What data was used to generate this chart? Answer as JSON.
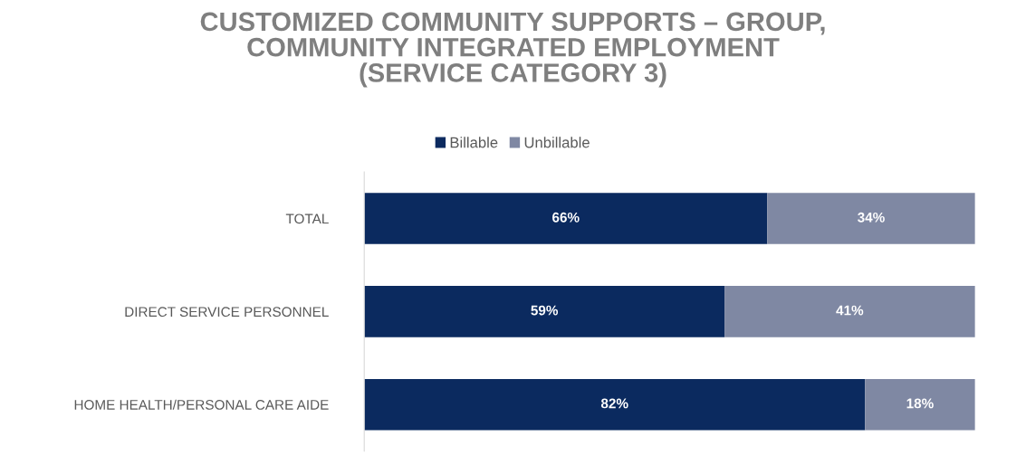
{
  "chart_data": {
    "type": "bar",
    "orientation": "horizontal",
    "stacked": true,
    "title": "CUSTOMIZED COMMUNITY SUPPORTS – GROUP,\nCOMMUNITY INTEGRATED EMPLOYMENT\n(SERVICE CATEGORY 3)",
    "categories": [
      "TOTAL",
      "DIRECT SERVICE PERSONNEL",
      "HOME HEALTH/PERSONAL CARE AIDE"
    ],
    "series": [
      {
        "name": "Billable",
        "color": "#0b2a5f",
        "values": [
          66,
          59,
          82
        ],
        "value_labels": [
          "66%",
          "59%",
          "82%"
        ]
      },
      {
        "name": "Unbillable",
        "color": "#7f88a3",
        "values": [
          34,
          41,
          18
        ],
        "value_labels": [
          "34%",
          "41%",
          "18%"
        ]
      }
    ],
    "legend": "top",
    "grid": false
  }
}
